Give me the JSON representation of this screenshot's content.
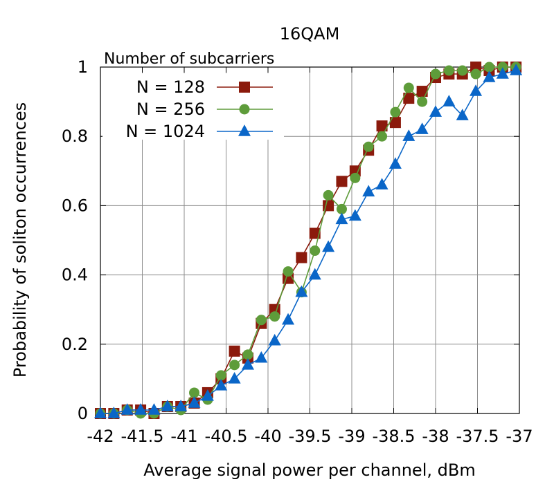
{
  "chart_data": {
    "type": "line",
    "title": "16QAM",
    "xlabel": "Average signal power per channel, dBm",
    "ylabel": "Probability of soliton occurrences",
    "xlim": [
      -42,
      -37
    ],
    "ylim": [
      0,
      1
    ],
    "grid": true,
    "legend_title": "Number of subcarriers",
    "legend_position": "top-left",
    "xticks": [
      -42,
      -41.5,
      -41,
      -40.5,
      -40,
      -39.5,
      -39,
      -38.5,
      -38,
      -37.5,
      -37
    ],
    "xtick_labels": [
      "-42",
      "-41.5",
      "-41",
      "-40.5",
      "-40",
      "-39.5",
      "-39",
      "-38.5",
      "-38",
      "-37.5",
      "-37"
    ],
    "yticks": [
      0,
      0.2,
      0.4,
      0.6,
      0.8,
      1
    ],
    "ytick_labels": [
      "0",
      "0.2",
      "0.4",
      "0.6",
      "0.8",
      "1"
    ],
    "x": [
      -42,
      -41.84,
      -41.68,
      -41.52,
      -41.36,
      -41.2,
      -41.04,
      -40.88,
      -40.72,
      -40.56,
      -40.4,
      -40.24,
      -40.08,
      -39.92,
      -39.76,
      -39.6,
      -39.44,
      -39.28,
      -39.12,
      -38.96,
      -38.8,
      -38.64,
      -38.48,
      -38.32,
      -38.16,
      -38.0,
      -37.84,
      -37.68,
      -37.52,
      -37.36,
      -37.2,
      -37.04
    ],
    "series": [
      {
        "name": "N = 128",
        "color": "#8b1a0c",
        "marker": "square",
        "values": [
          0.0,
          0.0,
          0.01,
          0.01,
          0.0,
          0.02,
          0.02,
          0.03,
          0.06,
          0.1,
          0.18,
          0.16,
          0.26,
          0.3,
          0.39,
          0.45,
          0.52,
          0.6,
          0.67,
          0.7,
          0.76,
          0.83,
          0.84,
          0.91,
          0.93,
          0.97,
          0.98,
          0.98,
          1.0,
          0.99,
          1.0,
          1.0
        ]
      },
      {
        "name": "N = 256",
        "color": "#5e9c3a",
        "marker": "circle",
        "values": [
          0.0,
          0.0,
          0.01,
          0.0,
          0.0,
          0.02,
          0.01,
          0.06,
          0.04,
          0.11,
          0.14,
          0.17,
          0.27,
          0.28,
          0.41,
          0.35,
          0.47,
          0.63,
          0.59,
          0.68,
          0.77,
          0.8,
          0.87,
          0.94,
          0.9,
          0.98,
          0.99,
          0.99,
          0.98,
          1.0,
          1.0,
          1.0
        ]
      },
      {
        "name": "N = 1024",
        "color": "#0a66c8",
        "marker": "triangle",
        "values": [
          0.0,
          0.0,
          0.01,
          0.01,
          0.01,
          0.02,
          0.02,
          0.03,
          0.05,
          0.08,
          0.1,
          0.14,
          0.16,
          0.21,
          0.27,
          0.35,
          0.4,
          0.48,
          0.56,
          0.57,
          0.64,
          0.66,
          0.72,
          0.8,
          0.82,
          0.87,
          0.9,
          0.86,
          0.93,
          0.97,
          0.98,
          0.99
        ]
      }
    ]
  }
}
